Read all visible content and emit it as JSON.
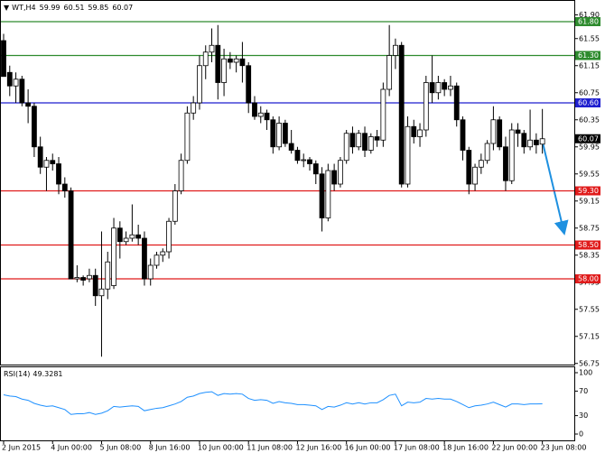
{
  "chart_data": {
    "type": "candlestick",
    "symbol": "WT,H4",
    "candles": [
      [
        61.52,
        61.62,
        61.0,
        60.99
      ],
      [
        61.05,
        61.15,
        60.7,
        60.85
      ],
      [
        60.85,
        61.05,
        60.6,
        60.95
      ],
      [
        60.95,
        61.0,
        60.55,
        60.6
      ],
      [
        60.6,
        60.8,
        60.3,
        60.55
      ],
      [
        60.55,
        60.6,
        59.8,
        59.95
      ],
      [
        59.95,
        60.1,
        59.55,
        59.65
      ],
      [
        59.65,
        59.8,
        59.3,
        59.75
      ],
      [
        59.75,
        59.85,
        59.6,
        59.7
      ],
      [
        59.7,
        59.8,
        59.25,
        59.4
      ],
      [
        59.4,
        59.5,
        59.2,
        59.3
      ],
      [
        59.3,
        59.35,
        58.0,
        58.0
      ],
      [
        58.0,
        58.2,
        57.95,
        58.02
      ],
      [
        58.02,
        58.05,
        57.9,
        57.98
      ],
      [
        58.0,
        58.15,
        57.95,
        58.05
      ],
      [
        58.05,
        58.15,
        57.6,
        57.75
      ],
      [
        57.75,
        58.7,
        56.85,
        57.85
      ],
      [
        57.85,
        58.4,
        57.7,
        58.25
      ],
      [
        57.9,
        58.9,
        57.85,
        58.75
      ],
      [
        58.75,
        58.85,
        58.3,
        58.55
      ],
      [
        58.55,
        58.7,
        58.5,
        58.6
      ],
      [
        58.6,
        59.1,
        58.55,
        58.65
      ],
      [
        58.65,
        58.8,
        58.5,
        58.6
      ],
      [
        58.6,
        58.7,
        57.9,
        58.0
      ],
      [
        58.0,
        58.3,
        57.9,
        58.2
      ],
      [
        58.2,
        58.4,
        58.15,
        58.35
      ],
      [
        58.35,
        58.45,
        58.25,
        58.4
      ],
      [
        58.4,
        58.9,
        58.3,
        58.85
      ],
      [
        58.85,
        59.4,
        58.8,
        59.3
      ],
      [
        59.3,
        59.85,
        59.25,
        59.75
      ],
      [
        59.75,
        60.55,
        59.7,
        60.45
      ],
      [
        60.45,
        60.7,
        60.35,
        60.6
      ],
      [
        60.6,
        61.3,
        60.5,
        61.15
      ],
      [
        61.15,
        61.45,
        60.95,
        61.35
      ],
      [
        61.35,
        61.7,
        61.2,
        61.45
      ],
      [
        61.45,
        61.75,
        60.65,
        60.9
      ],
      [
        60.9,
        61.4,
        60.7,
        61.25
      ],
      [
        61.25,
        61.35,
        61.1,
        61.2
      ],
      [
        61.2,
        61.3,
        61.05,
        61.25
      ],
      [
        61.25,
        61.5,
        60.9,
        61.15
      ],
      [
        61.15,
        61.2,
        60.45,
        60.6
      ],
      [
        60.6,
        60.7,
        60.35,
        60.4
      ],
      [
        60.4,
        60.55,
        60.3,
        60.45
      ],
      [
        60.45,
        60.5,
        60.2,
        60.35
      ],
      [
        60.35,
        60.4,
        59.85,
        59.95
      ],
      [
        59.95,
        60.4,
        59.9,
        60.3
      ],
      [
        60.3,
        60.35,
        59.95,
        60.0
      ],
      [
        60.0,
        60.2,
        59.85,
        59.9
      ],
      [
        59.9,
        59.95,
        59.7,
        59.75
      ],
      [
        59.75,
        59.85,
        59.65,
        59.76
      ],
      [
        59.76,
        59.8,
        59.6,
        59.7
      ],
      [
        59.7,
        59.75,
        59.4,
        59.55
      ],
      [
        59.55,
        59.65,
        58.7,
        58.9
      ],
      [
        58.9,
        59.7,
        58.85,
        59.6
      ],
      [
        59.6,
        59.7,
        59.3,
        59.4
      ],
      [
        59.4,
        59.8,
        59.35,
        59.75
      ],
      [
        59.75,
        60.2,
        59.7,
        60.15
      ],
      [
        60.15,
        60.25,
        59.85,
        59.95
      ],
      [
        59.95,
        60.2,
        59.9,
        60.15
      ],
      [
        60.15,
        60.25,
        59.8,
        59.9
      ],
      [
        59.9,
        60.15,
        59.85,
        60.1
      ],
      [
        60.1,
        60.2,
        59.95,
        60.05
      ],
      [
        60.05,
        60.9,
        59.95,
        60.8
      ],
      [
        60.8,
        61.75,
        60.7,
        61.3
      ],
      [
        61.3,
        61.55,
        61.1,
        61.45
      ],
      [
        61.45,
        61.5,
        59.35,
        59.4
      ],
      [
        59.4,
        60.4,
        59.35,
        60.25
      ],
      [
        60.25,
        60.35,
        60.0,
        60.1
      ],
      [
        60.1,
        60.3,
        59.95,
        60.2
      ],
      [
        60.2,
        61.0,
        60.1,
        60.9
      ],
      [
        60.9,
        61.3,
        60.6,
        60.75
      ],
      [
        60.75,
        61.0,
        60.65,
        60.9
      ],
      [
        60.9,
        60.95,
        60.7,
        60.8
      ],
      [
        60.8,
        61.0,
        60.7,
        60.85
      ],
      [
        60.85,
        60.9,
        60.25,
        60.35
      ],
      [
        60.35,
        60.4,
        59.75,
        59.9
      ],
      [
        59.9,
        59.95,
        59.25,
        59.4
      ],
      [
        59.4,
        59.7,
        59.3,
        59.65
      ],
      [
        59.65,
        59.85,
        59.55,
        59.75
      ],
      [
        59.75,
        60.05,
        59.7,
        60.0
      ],
      [
        60.0,
        60.55,
        59.9,
        60.35
      ],
      [
        60.35,
        60.4,
        59.9,
        59.95
      ],
      [
        59.95,
        60.1,
        59.3,
        59.45
      ],
      [
        59.45,
        60.3,
        59.4,
        60.2
      ],
      [
        60.2,
        60.3,
        59.95,
        60.15
      ],
      [
        60.15,
        60.2,
        59.85,
        59.95
      ],
      [
        59.95,
        60.5,
        59.9,
        60.05
      ],
      [
        60.05,
        60.15,
        59.85,
        59.98
      ],
      [
        59.99,
        60.51,
        59.85,
        60.07
      ]
    ],
    "categories": [
      "2 Jun 2015",
      null,
      null,
      null,
      null,
      null,
      null,
      null,
      "4 Jun 00:00",
      null,
      null,
      null,
      null,
      null,
      null,
      null,
      "5 Jun 08:00",
      null,
      null,
      null,
      null,
      null,
      null,
      null,
      "8 Jun 16:00",
      null,
      null,
      null,
      null,
      null,
      null,
      null,
      "10 Jun 00:00",
      null,
      null,
      null,
      null,
      null,
      null,
      null,
      "11 Jun 08:00",
      null,
      null,
      null,
      null,
      null,
      null,
      null,
      "12 Jun 16:00",
      null,
      null,
      null,
      null,
      null,
      null,
      null,
      "16 Jun 00:00",
      null,
      null,
      null,
      null,
      null,
      null,
      null,
      "17 Jun 08:00",
      null,
      null,
      null,
      null,
      null,
      null,
      null,
      "18 Jun 16:00",
      null,
      null,
      null,
      null,
      null,
      null,
      null,
      "22 Jun 00:00",
      null,
      null,
      null,
      null,
      null,
      null,
      null,
      "23 Jun 08:00"
    ],
    "ylim": [
      56.72,
      62.12
    ],
    "yticks": [
      {
        "value": 61.9,
        "label": "61.90"
      },
      {
        "value": 61.55,
        "label": "61.55"
      },
      {
        "value": 61.15,
        "label": "61.15"
      },
      {
        "value": 60.75,
        "label": "60.75"
      },
      {
        "value": 60.35,
        "label": "60.35"
      },
      {
        "value": 59.95,
        "label": "59.95"
      },
      {
        "value": 59.55,
        "label": "59.55"
      },
      {
        "value": 59.15,
        "label": "59.15"
      },
      {
        "value": 58.75,
        "label": "58.75"
      },
      {
        "value": 58.35,
        "label": "58.35"
      },
      {
        "value": 57.95,
        "label": "57.95"
      },
      {
        "value": 57.55,
        "label": "57.55"
      },
      {
        "value": 57.15,
        "label": "57.15"
      },
      {
        "value": 56.75,
        "label": "56.75"
      }
    ],
    "levels": [
      {
        "value": 61.8,
        "label": "61.80",
        "color": "#2e8b2e"
      },
      {
        "value": 61.3,
        "label": "61.30",
        "color": "#2e8b2e"
      },
      {
        "value": 60.6,
        "label": "60.60",
        "color": "#1f1fcf"
      },
      {
        "value": 59.3,
        "label": "59.30",
        "color": "#e01b1b"
      },
      {
        "value": 58.5,
        "label": "58.50",
        "color": "#e01b1b"
      },
      {
        "value": 58.0,
        "label": "58.00",
        "color": "#e01b1b"
      }
    ],
    "rsi": {
      "name": "RSI(14)",
      "color": "#1e90ff",
      "ylim": [
        0,
        100
      ],
      "yticks": [
        100,
        70,
        30,
        0
      ],
      "values": [
        64,
        62,
        61,
        57,
        55,
        50,
        47,
        45,
        46,
        43,
        40,
        32,
        33,
        33,
        35,
        32,
        34,
        38,
        45,
        44,
        45,
        46,
        45,
        38,
        40,
        42,
        43,
        46,
        49,
        53,
        60,
        62,
        66,
        68,
        69,
        63,
        66,
        65,
        66,
        65,
        58,
        55,
        56,
        55,
        50,
        53,
        51,
        50,
        48,
        48,
        47,
        46,
        40,
        45,
        44,
        47,
        51,
        49,
        51,
        49,
        51,
        51,
        56,
        63,
        65,
        46,
        52,
        51,
        52,
        58,
        57,
        58,
        57,
        57,
        53,
        48,
        43,
        46,
        47,
        49,
        52,
        48,
        44,
        49,
        49,
        48,
        49,
        49,
        49.3281
      ]
    }
  }
}
